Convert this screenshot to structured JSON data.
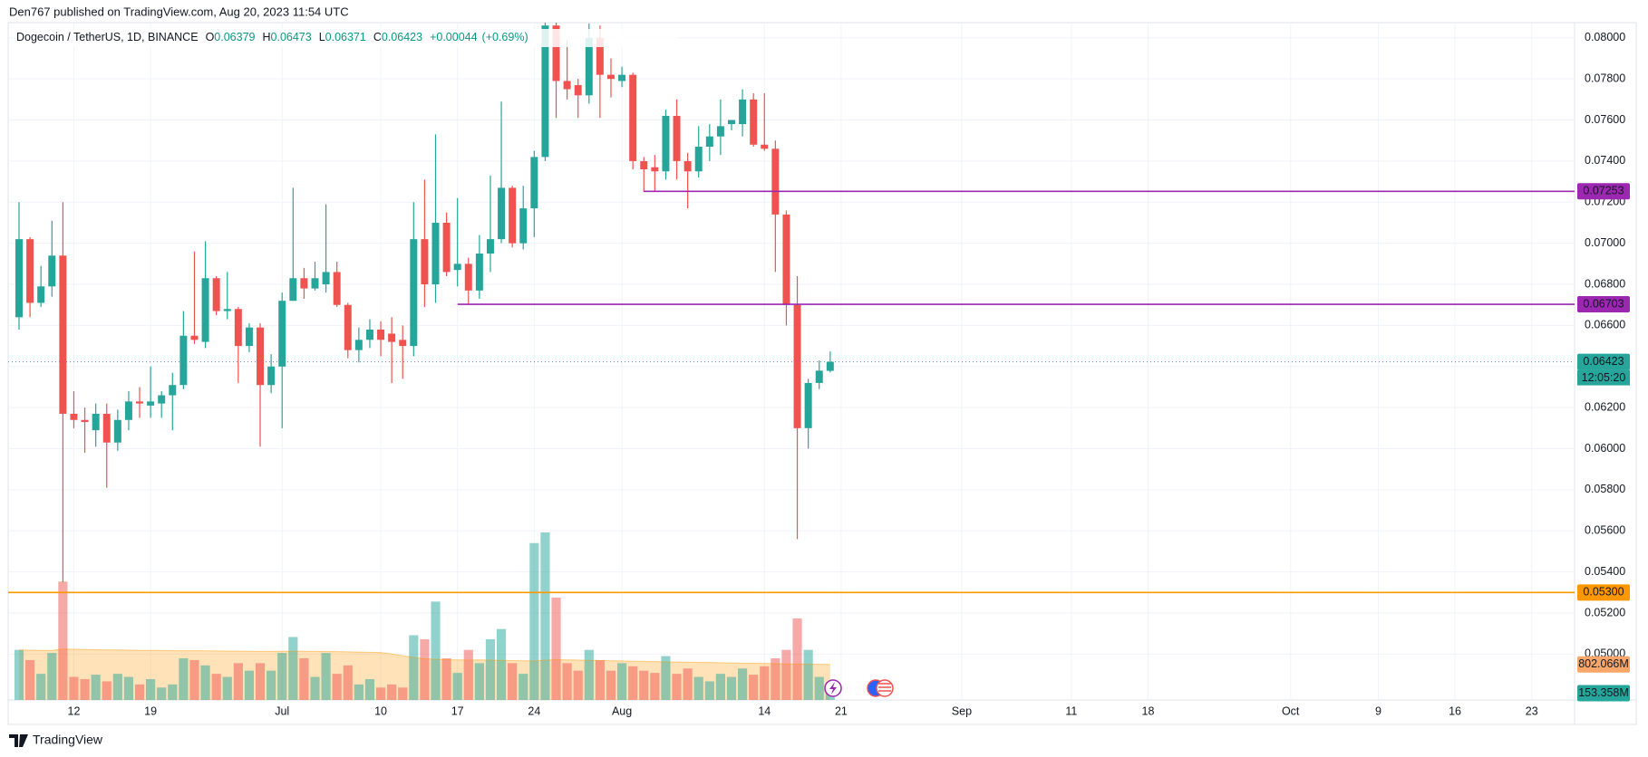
{
  "publisher": "Den767 published on TradingView.com, Aug 20, 2023 11:54 UTC",
  "brand": "TradingView",
  "chart_data": {
    "type": "candlestick",
    "legend": {
      "symbol": "Dogecoin / TetherUS, 1D, BINANCE",
      "open_label": "O",
      "open": 0.06379,
      "high_label": "H",
      "high": 0.06473,
      "low_label": "L",
      "low": 0.06371,
      "close_label": "C",
      "close": 0.06423,
      "change": {
        "value": 0.00044,
        "label": "+0.00044"
      },
      "change_pct": {
        "value": 0.69,
        "label": "(+0.69%)"
      }
    },
    "categories": [
      null,
      null,
      null,
      null,
      null,
      "12",
      null,
      null,
      null,
      null,
      null,
      null,
      "19",
      null,
      null,
      null,
      null,
      null,
      null,
      null,
      null,
      null,
      null,
      null,
      "Jul",
      null,
      null,
      null,
      null,
      null,
      null,
      null,
      null,
      "10",
      null,
      null,
      null,
      null,
      null,
      null,
      "17",
      null,
      null,
      null,
      null,
      null,
      null,
      "24",
      null,
      null,
      null,
      null,
      null,
      null,
      null,
      "Aug",
      null,
      null,
      null,
      null,
      null,
      null,
      null,
      null,
      null,
      null,
      null,
      null,
      "14",
      null,
      null,
      null,
      null,
      null,
      null,
      "21",
      null,
      null,
      null,
      null,
      null,
      null,
      null,
      null,
      null,
      null,
      "Sep",
      null,
      null,
      null,
      null,
      null,
      null,
      null,
      null,
      null,
      "11",
      null,
      null,
      null,
      null,
      null,
      null,
      "18",
      null,
      null,
      null,
      null,
      null,
      null,
      null,
      null,
      null,
      null,
      null,
      null,
      "Oct",
      null,
      null,
      null,
      null,
      null,
      null,
      null,
      "9",
      null,
      null,
      null,
      null,
      null,
      null,
      "16",
      null,
      null,
      null,
      null,
      null,
      null,
      "23",
      null,
      null,
      null
    ],
    "open": [
      0.0664,
      0.0702,
      0.0671,
      0.0679,
      0.0694,
      0.0617,
      0.0614,
      0.0609,
      0.0617,
      0.0603,
      0.0614,
      0.0623,
      0.0621,
      0.0622,
      0.0626,
      0.0631,
      0.0655,
      0.0652,
      0.0683,
      0.0667,
      0.0668,
      0.065,
      0.0659,
      0.0631,
      0.064,
      0.0672,
      0.0683,
      0.0678,
      0.068,
      0.0686,
      0.067,
      0.0648,
      0.0653,
      0.0658,
      0.0656,
      0.0653,
      0.065,
      0.0702,
      0.068,
      0.071,
      0.0687,
      0.069,
      0.0677,
      0.0695,
      0.0702,
      0.0727,
      0.07,
      0.0717,
      0.0742,
      0.0806,
      0.0779,
      0.0777,
      0.0772,
      0.08,
      0.0782,
      0.0779,
      0.0782,
      0.074,
      0.0737,
      0.0735,
      0.0762,
      0.074,
      0.0735,
      0.0747,
      0.0752,
      0.0758,
      0.0758,
      0.077,
      0.0748,
      0.0746,
      0.0714,
      0.067,
      0.061,
      0.0632,
      0.06379,
      null,
      null,
      null,
      null,
      null,
      null,
      null,
      null,
      null,
      null,
      null,
      null,
      null,
      null,
      null,
      null,
      null,
      null,
      null,
      null,
      null,
      null,
      null,
      null,
      null,
      null,
      null,
      null,
      null,
      null,
      null,
      null,
      null,
      null,
      null,
      null,
      null,
      null,
      null,
      null,
      null,
      null,
      null,
      null,
      null,
      null,
      null,
      null,
      null,
      null,
      null,
      null,
      null,
      null,
      null,
      null,
      null,
      null,
      null,
      null,
      null,
      null,
      null,
      null,
      null,
      null,
      null
    ],
    "high": [
      0.072,
      0.0703,
      0.0689,
      0.0711,
      0.072,
      0.0628,
      0.062,
      0.0622,
      0.0622,
      0.0619,
      0.0628,
      0.063,
      0.064,
      0.0628,
      0.0637,
      0.0667,
      0.0696,
      0.0701,
      0.0684,
      0.0686,
      0.0669,
      0.0661,
      0.0661,
      0.0646,
      0.0676,
      0.0727,
      0.0688,
      0.0691,
      0.0719,
      0.0691,
      0.0671,
      0.0659,
      0.0663,
      0.0662,
      0.0664,
      0.066,
      0.072,
      0.0731,
      0.0753,
      0.0715,
      0.0722,
      0.0693,
      0.0704,
      0.0733,
      0.0769,
      0.0728,
      0.0728,
      0.0745,
      0.0812,
      0.0812,
      0.0799,
      0.078,
      0.0807,
      0.0806,
      0.079,
      0.0786,
      0.0783,
      0.0742,
      0.0743,
      0.0765,
      0.077,
      0.0744,
      0.0757,
      0.0758,
      0.077,
      0.076,
      0.0775,
      0.0773,
      0.0773,
      0.075,
      0.0716,
      0.0684,
      0.0634,
      0.0643,
      0.06473,
      null,
      null,
      null,
      null,
      null,
      null,
      null,
      null,
      null,
      null,
      null,
      null,
      null,
      null,
      null,
      null,
      null,
      null,
      null,
      null,
      null,
      null,
      null,
      null,
      null,
      null,
      null,
      null,
      null,
      null,
      null,
      null,
      null,
      null,
      null,
      null,
      null,
      null,
      null,
      null,
      null,
      null,
      null,
      null,
      null,
      null,
      null,
      null,
      null,
      null,
      null,
      null,
      null,
      null,
      null,
      null,
      null,
      null,
      null,
      null,
      null,
      null,
      null,
      null,
      null,
      null,
      null
    ],
    "low": [
      0.0658,
      0.0664,
      0.0669,
      0.0674,
      0.0535,
      0.061,
      0.0598,
      0.0601,
      0.0581,
      0.0599,
      0.0609,
      0.0615,
      0.0615,
      0.0615,
      0.0609,
      0.0629,
      0.0651,
      0.0649,
      0.0665,
      0.0663,
      0.0632,
      0.0647,
      0.0601,
      0.0627,
      0.061,
      0.0672,
      0.0673,
      0.0677,
      0.0676,
      0.0669,
      0.0644,
      0.0642,
      0.0649,
      0.0645,
      0.0632,
      0.0634,
      0.0645,
      0.0669,
      0.0671,
      0.0684,
      0.0679,
      0.067,
      0.0673,
      0.0686,
      0.07,
      0.0698,
      0.0697,
      0.0703,
      0.074,
      0.0761,
      0.077,
      0.0761,
      0.0768,
      0.0761,
      0.0771,
      0.0776,
      0.0736,
      0.0725,
      0.0725,
      0.0731,
      0.0731,
      0.0717,
      0.0732,
      0.074,
      0.0743,
      0.0755,
      0.0752,
      0.0747,
      0.0745,
      0.0686,
      0.066,
      0.0556,
      0.06,
      0.0629,
      0.06371,
      null,
      null,
      null,
      null,
      null,
      null,
      null,
      null,
      null,
      null,
      null,
      null,
      null,
      null,
      null,
      null,
      null,
      null,
      null,
      null,
      null,
      null,
      null,
      null,
      null,
      null,
      null,
      null,
      null,
      null,
      null,
      null,
      null,
      null,
      null,
      null,
      null,
      null,
      null,
      null,
      null,
      null,
      null,
      null,
      null,
      null,
      null,
      null,
      null,
      null,
      null,
      null,
      null,
      null,
      null,
      null,
      null,
      null,
      null,
      null,
      null,
      null,
      null,
      null,
      null,
      null,
      null
    ],
    "close": [
      0.0702,
      0.0671,
      0.0679,
      0.0694,
      0.0617,
      0.0614,
      0.0613,
      0.0617,
      0.0603,
      0.0614,
      0.0623,
      0.0622,
      0.0623,
      0.0626,
      0.0631,
      0.0655,
      0.0653,
      0.0683,
      0.0667,
      0.0668,
      0.065,
      0.0659,
      0.0631,
      0.064,
      0.0672,
      0.0683,
      0.0678,
      0.0683,
      0.0686,
      0.067,
      0.0648,
      0.0653,
      0.0658,
      0.0653,
      0.0652,
      0.065,
      0.0702,
      0.068,
      0.071,
      0.0686,
      0.069,
      0.0677,
      0.0695,
      0.0702,
      0.0727,
      0.07,
      0.0717,
      0.0742,
      0.0806,
      0.0779,
      0.0775,
      0.0772,
      0.08,
      0.0782,
      0.078,
      0.0782,
      0.074,
      0.0736,
      0.0735,
      0.0762,
      0.074,
      0.0735,
      0.0747,
      0.0752,
      0.0757,
      0.076,
      0.077,
      0.0748,
      0.0746,
      0.0714,
      0.067,
      0.061,
      0.0632,
      0.0638,
      0.06423,
      null,
      null,
      null,
      null,
      null,
      null,
      null,
      null,
      null,
      null,
      null,
      null,
      null,
      null,
      null,
      null,
      null,
      null,
      null,
      null,
      null,
      null,
      null,
      null,
      null,
      null,
      null,
      null,
      null,
      null,
      null,
      null,
      null,
      null,
      null,
      null,
      null,
      null,
      null,
      null,
      null,
      null,
      null,
      null,
      null,
      null,
      null,
      null,
      null,
      null,
      null,
      null,
      null,
      null,
      null,
      null,
      null,
      null,
      null,
      null,
      null,
      null,
      null,
      null,
      null,
      null,
      null
    ],
    "volume": [
      1130,
      900,
      590,
      1060,
      2670,
      520,
      470,
      570,
      420,
      590,
      520,
      350,
      470,
      280,
      350,
      940,
      900,
      780,
      590,
      520,
      830,
      660,
      830,
      660,
      1060,
      1420,
      940,
      520,
      1060,
      590,
      780,
      350,
      470,
      280,
      350,
      280,
      1460,
      1370,
      2220,
      940,
      610,
      1130,
      830,
      1370,
      1600,
      830,
      590,
      3540,
      3780,
      2310,
      830,
      660,
      1130,
      900,
      660,
      830,
      760,
      660,
      610,
      990,
      590,
      710,
      520,
      420,
      590,
      520,
      710,
      570,
      760,
      940,
      1130,
      1840,
      1130,
      520,
      153.358,
      null,
      null,
      null,
      null,
      null,
      null,
      null,
      null,
      null,
      null,
      null,
      null,
      null,
      null,
      null,
      null,
      null,
      null,
      null,
      null,
      null,
      null,
      null,
      null,
      null,
      null,
      null,
      null,
      null,
      null,
      null,
      null,
      null,
      null,
      null,
      null,
      null,
      null,
      null,
      null,
      null,
      null,
      null,
      null,
      null,
      null,
      null,
      null,
      null,
      null,
      null,
      null,
      null,
      null,
      null,
      null,
      null,
      null,
      null,
      null,
      null,
      null,
      null,
      null,
      null,
      null,
      null
    ],
    "volume_ma": [
      1130,
      1125,
      1120,
      1118,
      1150,
      1145,
      1140,
      1135,
      1130,
      1128,
      1125,
      1120,
      1118,
      1115,
      1110,
      1112,
      1110,
      1108,
      1105,
      1103,
      1100,
      1098,
      1096,
      1095,
      1098,
      1100,
      1098,
      1095,
      1093,
      1090,
      1085,
      1080,
      1075,
      1070,
      1040,
      1000,
      960,
      930,
      920,
      910,
      905,
      900,
      905,
      900,
      895,
      890,
      885,
      880,
      900,
      910,
      905,
      900,
      895,
      890,
      885,
      880,
      875,
      870,
      865,
      860,
      855,
      850,
      848,
      845,
      840,
      835,
      830,
      828,
      825,
      820,
      815,
      812,
      808,
      805,
      802.066,
      null,
      null,
      null,
      null,
      null,
      null,
      null,
      null,
      null,
      null,
      null,
      null,
      null,
      null,
      null,
      null,
      null,
      null,
      null,
      null,
      null,
      null,
      null,
      null,
      null,
      null,
      null,
      null,
      null,
      null,
      null,
      null,
      null,
      null,
      null,
      null,
      null,
      null,
      null,
      null,
      null,
      null,
      null,
      null,
      null,
      null,
      null,
      null,
      null,
      null,
      null,
      null,
      null,
      null,
      null,
      null,
      null,
      null,
      null,
      null,
      null,
      null,
      null,
      null,
      null,
      null,
      null
    ],
    "up_color": "#26a69a",
    "down_color": "#ef5350",
    "volume_ma_color": "#ff9800",
    "ylim": [
      0.04777,
      0.08074
    ],
    "yticks": [
      {
        "value": 0.05,
        "label": "0.05000"
      },
      {
        "value": 0.052,
        "label": "0.05200"
      },
      {
        "value": 0.054,
        "label": "0.05400"
      },
      {
        "value": 0.056,
        "label": "0.05600"
      },
      {
        "value": 0.058,
        "label": "0.05800"
      },
      {
        "value": 0.06,
        "label": "0.06000"
      },
      {
        "value": 0.062,
        "label": "0.06200"
      },
      {
        "value": 0.064,
        "label": "0.06400"
      },
      {
        "value": 0.066,
        "label": "0.06600"
      },
      {
        "value": 0.068,
        "label": "0.06800"
      },
      {
        "value": 0.07,
        "label": "0.07000"
      },
      {
        "value": 0.072,
        "label": "0.07200"
      },
      {
        "value": 0.074,
        "label": "0.07400"
      },
      {
        "value": 0.076,
        "label": "0.07600"
      },
      {
        "value": 0.078,
        "label": "0.07800"
      },
      {
        "value": 0.08,
        "label": "0.08000"
      }
    ],
    "grid": true,
    "levels": [
      {
        "value": 0.07253,
        "color": "#9c27b0"
      },
      {
        "value": 0.06703,
        "color": "#9c27b0"
      },
      {
        "value": 0.053,
        "label": "0.05300",
        "color": "#ff9800"
      }
    ],
    "last_price": {
      "value": 0.06423,
      "countdown": "12:05:20"
    },
    "volume_ma_last": {
      "value": 802.066,
      "label": "802.066M"
    },
    "volume_last": {
      "value": 153.358,
      "label": "153.358M"
    }
  }
}
